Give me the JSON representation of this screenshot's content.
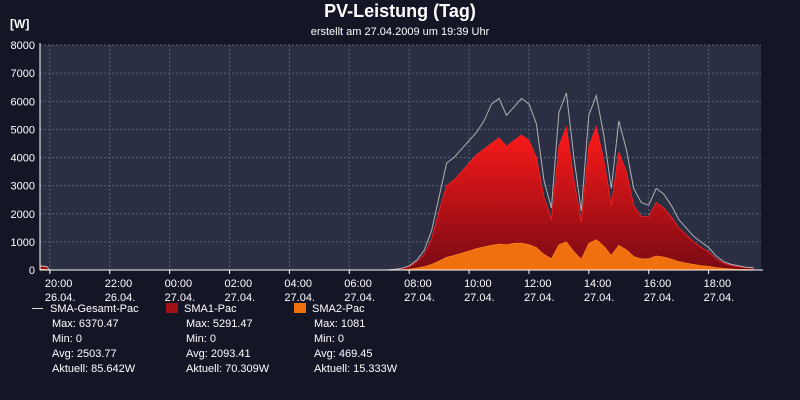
{
  "header": {
    "title": "PV-Leistung (Tag)",
    "subtitle": "erstellt am 27.04.2009 um 19:39 Uhr",
    "unit": "[W]"
  },
  "chart_data": {
    "type": "area",
    "title": "PV-Leistung (Tag)",
    "subtitle": "erstellt am 27.04.2009 um 19:39 Uhr",
    "ylabel": "[W]",
    "xlabel": "",
    "ylim": [
      0,
      8000
    ],
    "xlim": [
      "26.04. 19:40",
      "27.04. 19:45"
    ],
    "grid": true,
    "legend_position": "bottom-left",
    "y_ticks": [
      0,
      1000,
      2000,
      3000,
      4000,
      5000,
      6000,
      7000,
      8000
    ],
    "x_ticks": [
      {
        "time": "20:00",
        "date": "26.04.",
        "hour": 20
      },
      {
        "time": "22:00",
        "date": "26.04.",
        "hour": 22
      },
      {
        "time": "00:00",
        "date": "27.04.",
        "hour": 24
      },
      {
        "time": "02:00",
        "date": "27.04.",
        "hour": 26
      },
      {
        "time": "04:00",
        "date": "27.04.",
        "hour": 28
      },
      {
        "time": "06:00",
        "date": "27.04.",
        "hour": 30
      },
      {
        "time": "08:00",
        "date": "27.04.",
        "hour": 32
      },
      {
        "time": "10:00",
        "date": "27.04.",
        "hour": 34
      },
      {
        "time": "12:00",
        "date": "27.04.",
        "hour": 36
      },
      {
        "time": "14:00",
        "date": "27.04.",
        "hour": 38
      },
      {
        "time": "16:00",
        "date": "27.04.",
        "hour": 40
      },
      {
        "time": "18:00",
        "date": "27.04.",
        "hour": 42
      }
    ],
    "x_unit": "hours since 26.04. 00:00",
    "series": [
      {
        "name": "SMA-Gesamt-Pac",
        "kind": "line",
        "color": "#b0b0b0",
        "stats": {
          "max": "Max: 6370.47",
          "min": "Min: 0",
          "avg": "Avg: 2503.77",
          "current": "Aktuell: 85.642W"
        },
        "points": [
          [
            19.67,
            150
          ],
          [
            19.9,
            120
          ],
          [
            20.0,
            0
          ],
          [
            31.25,
            0
          ],
          [
            31.5,
            20
          ],
          [
            31.75,
            60
          ],
          [
            32.0,
            150
          ],
          [
            32.25,
            350
          ],
          [
            32.5,
            700
          ],
          [
            32.75,
            1400
          ],
          [
            33.0,
            2600
          ],
          [
            33.25,
            3800
          ],
          [
            33.5,
            4000
          ],
          [
            33.75,
            4300
          ],
          [
            34.0,
            4600
          ],
          [
            34.25,
            4900
          ],
          [
            34.5,
            5300
          ],
          [
            34.75,
            5900
          ],
          [
            35.0,
            6100
          ],
          [
            35.25,
            5500
          ],
          [
            35.5,
            5800
          ],
          [
            35.75,
            6100
          ],
          [
            36.0,
            5900
          ],
          [
            36.25,
            5200
          ],
          [
            36.5,
            3200
          ],
          [
            36.75,
            2200
          ],
          [
            37.0,
            5600
          ],
          [
            37.25,
            6300
          ],
          [
            37.5,
            4000
          ],
          [
            37.75,
            2100
          ],
          [
            38.0,
            5500
          ],
          [
            38.25,
            6200
          ],
          [
            38.5,
            4800
          ],
          [
            38.75,
            2900
          ],
          [
            39.0,
            5300
          ],
          [
            39.25,
            4300
          ],
          [
            39.5,
            2900
          ],
          [
            39.75,
            2400
          ],
          [
            40.0,
            2300
          ],
          [
            40.25,
            2900
          ],
          [
            40.5,
            2700
          ],
          [
            40.75,
            2300
          ],
          [
            41.0,
            1800
          ],
          [
            41.25,
            1500
          ],
          [
            41.5,
            1200
          ],
          [
            41.75,
            1000
          ],
          [
            42.0,
            800
          ],
          [
            42.25,
            500
          ],
          [
            42.5,
            300
          ],
          [
            42.75,
            200
          ],
          [
            43.0,
            150
          ],
          [
            43.25,
            100
          ],
          [
            43.5,
            86
          ]
        ]
      },
      {
        "name": "SMA1-Pac",
        "kind": "area",
        "color": "#c01010",
        "stats": {
          "max": "Max: 5291.47",
          "min": "Min: 0",
          "avg": "Avg: 2093.41",
          "current": "Aktuell: 70.309W"
        },
        "points": [
          [
            19.67,
            120
          ],
          [
            19.9,
            100
          ],
          [
            20.0,
            0
          ],
          [
            31.25,
            0
          ],
          [
            31.5,
            15
          ],
          [
            31.75,
            50
          ],
          [
            32.0,
            120
          ],
          [
            32.25,
            280
          ],
          [
            32.5,
            550
          ],
          [
            32.75,
            1100
          ],
          [
            33.0,
            2100
          ],
          [
            33.25,
            3000
          ],
          [
            33.5,
            3200
          ],
          [
            33.75,
            3500
          ],
          [
            34.0,
            3800
          ],
          [
            34.25,
            4100
          ],
          [
            34.5,
            4300
          ],
          [
            34.75,
            4500
          ],
          [
            35.0,
            4700
          ],
          [
            35.25,
            4400
          ],
          [
            35.5,
            4600
          ],
          [
            35.75,
            4800
          ],
          [
            36.0,
            4600
          ],
          [
            36.25,
            4000
          ],
          [
            36.5,
            2600
          ],
          [
            36.75,
            1800
          ],
          [
            37.0,
            4400
          ],
          [
            37.25,
            5100
          ],
          [
            37.5,
            3200
          ],
          [
            37.75,
            1700
          ],
          [
            38.0,
            4400
          ],
          [
            38.25,
            5100
          ],
          [
            38.5,
            3900
          ],
          [
            38.75,
            2300
          ],
          [
            39.0,
            4200
          ],
          [
            39.25,
            3500
          ],
          [
            39.5,
            2300
          ],
          [
            39.75,
            1900
          ],
          [
            40.0,
            1900
          ],
          [
            40.25,
            2400
          ],
          [
            40.5,
            2200
          ],
          [
            40.75,
            1900
          ],
          [
            41.0,
            1500
          ],
          [
            41.25,
            1250
          ],
          [
            41.5,
            1000
          ],
          [
            41.75,
            800
          ],
          [
            42.0,
            650
          ],
          [
            42.25,
            400
          ],
          [
            42.5,
            250
          ],
          [
            42.75,
            160
          ],
          [
            43.0,
            120
          ],
          [
            43.25,
            90
          ],
          [
            43.5,
            70
          ]
        ]
      },
      {
        "name": "SMA2-Pac",
        "kind": "area",
        "color": "#f07010",
        "stats": {
          "max": "Max: 1081",
          "min": "Min: 0",
          "avg": "Avg: 469.45",
          "current": "Aktuell: 15.333W"
        },
        "points": [
          [
            19.67,
            30
          ],
          [
            19.9,
            20
          ],
          [
            20.0,
            0
          ],
          [
            31.25,
            0
          ],
          [
            31.5,
            5
          ],
          [
            31.75,
            10
          ],
          [
            32.0,
            30
          ],
          [
            32.25,
            70
          ],
          [
            32.5,
            120
          ],
          [
            32.75,
            200
          ],
          [
            33.0,
            320
          ],
          [
            33.25,
            450
          ],
          [
            33.5,
            520
          ],
          [
            33.75,
            600
          ],
          [
            34.0,
            680
          ],
          [
            34.25,
            760
          ],
          [
            34.5,
            820
          ],
          [
            34.75,
            880
          ],
          [
            35.0,
            920
          ],
          [
            35.25,
            900
          ],
          [
            35.5,
            950
          ],
          [
            35.75,
            960
          ],
          [
            36.0,
            900
          ],
          [
            36.25,
            800
          ],
          [
            36.5,
            560
          ],
          [
            36.75,
            400
          ],
          [
            37.0,
            900
          ],
          [
            37.25,
            1000
          ],
          [
            37.5,
            650
          ],
          [
            37.75,
            380
          ],
          [
            38.0,
            950
          ],
          [
            38.25,
            1080
          ],
          [
            38.5,
            850
          ],
          [
            38.75,
            520
          ],
          [
            39.0,
            880
          ],
          [
            39.25,
            720
          ],
          [
            39.5,
            480
          ],
          [
            39.75,
            400
          ],
          [
            40.0,
            400
          ],
          [
            40.25,
            500
          ],
          [
            40.5,
            460
          ],
          [
            40.75,
            390
          ],
          [
            41.0,
            300
          ],
          [
            41.25,
            250
          ],
          [
            41.5,
            200
          ],
          [
            41.75,
            160
          ],
          [
            42.0,
            130
          ],
          [
            42.25,
            90
          ],
          [
            42.5,
            60
          ],
          [
            42.75,
            40
          ],
          [
            43.0,
            25
          ],
          [
            43.25,
            20
          ],
          [
            43.5,
            15
          ]
        ]
      }
    ]
  },
  "legend": [
    {
      "label": "SMA-Gesamt-Pac",
      "swatch": "line",
      "color": "#d8d8d8",
      "max": "Max: 6370.47",
      "min": "Min: 0",
      "avg": "Avg: 2503.77",
      "current": "Aktuell: 85.642W"
    },
    {
      "label": "SMA1-Pac",
      "swatch": "box",
      "color": "#a01018",
      "max": "Max: 5291.47",
      "min": "Min: 0",
      "avg": "Avg: 2093.41",
      "current": "Aktuell: 70.309W"
    },
    {
      "label": "SMA2-Pac",
      "swatch": "box",
      "color": "#f07010",
      "max": "Max: 1081",
      "min": "Min: 0",
      "avg": "Avg: 469.45",
      "current": "Aktuell: 15.333W"
    }
  ],
  "colors": {
    "background": "#141626",
    "plot_background": "#2a2f44",
    "grid": "#5a6078",
    "axis": "#ffffff",
    "sma1_gradient_top": "#ff1a1a",
    "sma1_gradient_bottom": "#7a0a14"
  }
}
